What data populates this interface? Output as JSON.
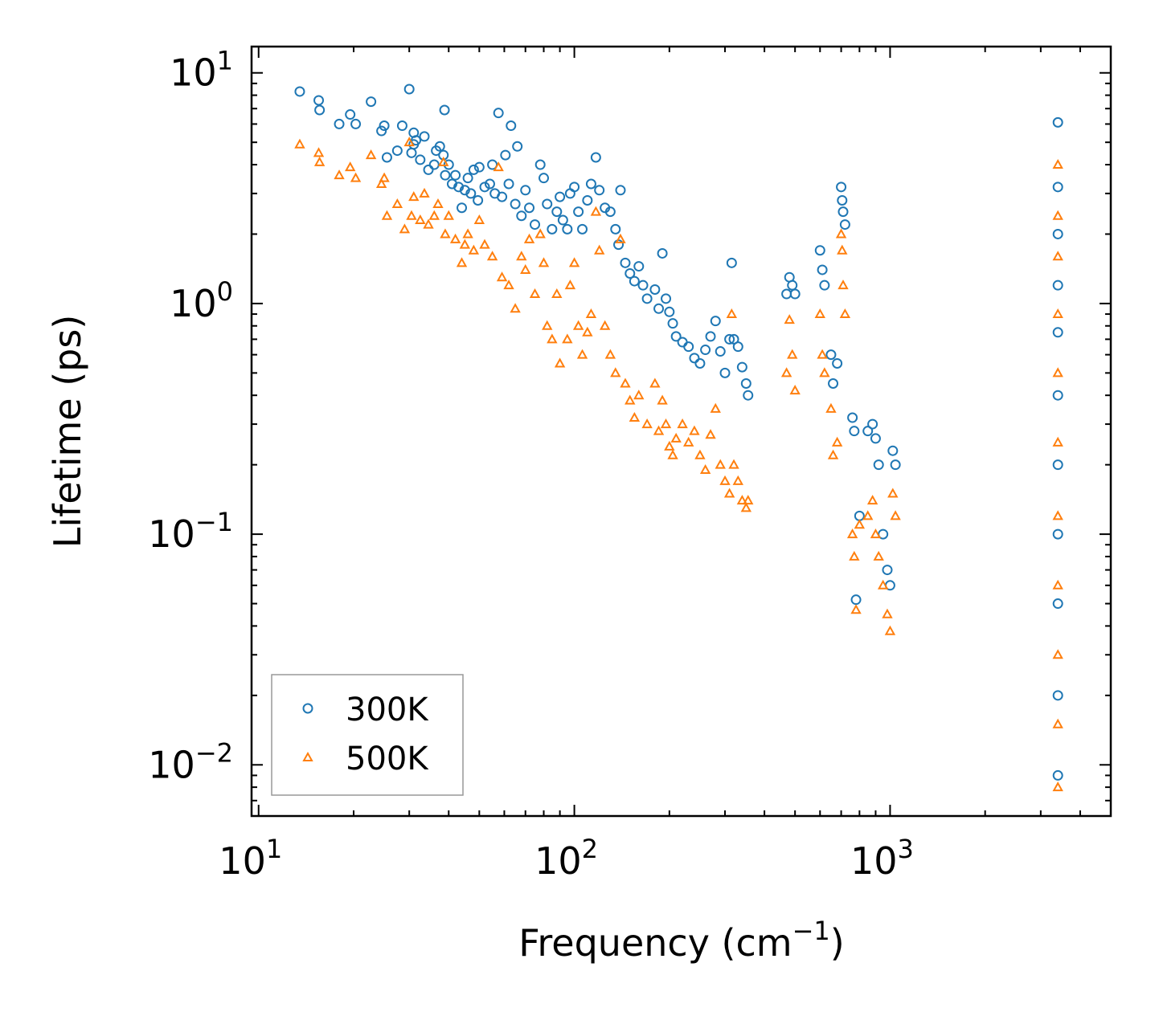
{
  "chart_data": {
    "type": "scatter",
    "xscale": "log",
    "yscale": "log",
    "xlim": [
      9.5,
      5000
    ],
    "ylim": [
      0.006,
      13
    ],
    "xlabel": "Frequency (cm",
    "xlabel_sup": "−1",
    "xlabel_end": ")",
    "ylabel": "Lifetime (ps)",
    "legend_position": "lower-left",
    "x_ticks": [
      {
        "value": 10,
        "base": "10",
        "exp": "1"
      },
      {
        "value": 100,
        "base": "10",
        "exp": "2"
      },
      {
        "value": 1000,
        "base": "10",
        "exp": "3"
      }
    ],
    "y_ticks": [
      {
        "value": 0.01,
        "base": "10",
        "exp": "−2"
      },
      {
        "value": 0.1,
        "base": "10",
        "exp": "−1"
      },
      {
        "value": 1,
        "base": "10",
        "exp": "0"
      },
      {
        "value": 10,
        "base": "10",
        "exp": "1"
      }
    ],
    "series": [
      {
        "name": "300K",
        "marker": "circle",
        "color": "#1f77b4",
        "points": [
          [
            13.5,
            8.3
          ],
          [
            15.5,
            7.6
          ],
          [
            15.6,
            6.9
          ],
          [
            18,
            6.0
          ],
          [
            19.5,
            6.6
          ],
          [
            20.3,
            6.0
          ],
          [
            22.7,
            7.5
          ],
          [
            24.5,
            5.6
          ],
          [
            25,
            5.9
          ],
          [
            25.5,
            4.3
          ],
          [
            27.5,
            4.6
          ],
          [
            28.5,
            5.9
          ],
          [
            30,
            8.5
          ],
          [
            30.5,
            4.5
          ],
          [
            31,
            4.9
          ],
          [
            31,
            5.5
          ],
          [
            31.5,
            5.1
          ],
          [
            32.5,
            4.2
          ],
          [
            33.5,
            5.3
          ],
          [
            34.5,
            3.8
          ],
          [
            36,
            4.0
          ],
          [
            36.5,
            4.6
          ],
          [
            37.5,
            4.8
          ],
          [
            38.5,
            4.4
          ],
          [
            38.8,
            6.9
          ],
          [
            39,
            3.6
          ],
          [
            40,
            4.0
          ],
          [
            41,
            3.3
          ],
          [
            42,
            3.6
          ],
          [
            43,
            3.2
          ],
          [
            44,
            2.6
          ],
          [
            45,
            3.1
          ],
          [
            46,
            3.5
          ],
          [
            47,
            3.0
          ],
          [
            48,
            3.8
          ],
          [
            49.5,
            2.8
          ],
          [
            50,
            3.9
          ],
          [
            52,
            3.2
          ],
          [
            54,
            3.3
          ],
          [
            55,
            4.0
          ],
          [
            56,
            3.0
          ],
          [
            57.5,
            6.7
          ],
          [
            59,
            2.9
          ],
          [
            60.5,
            4.4
          ],
          [
            62,
            3.3
          ],
          [
            63,
            5.9
          ],
          [
            65,
            2.7
          ],
          [
            66,
            4.8
          ],
          [
            68,
            2.4
          ],
          [
            70,
            3.1
          ],
          [
            72,
            2.6
          ],
          [
            75,
            2.2
          ],
          [
            78,
            4.0
          ],
          [
            80,
            3.5
          ],
          [
            82,
            2.7
          ],
          [
            85,
            2.1
          ],
          [
            88,
            2.5
          ],
          [
            90,
            2.9
          ],
          [
            92,
            2.3
          ],
          [
            95,
            2.1
          ],
          [
            97,
            3.0
          ],
          [
            100,
            3.2
          ],
          [
            103,
            2.5
          ],
          [
            106,
            2.1
          ],
          [
            110,
            2.8
          ],
          [
            113,
            3.3
          ],
          [
            117,
            4.3
          ],
          [
            120,
            3.1
          ],
          [
            125,
            2.6
          ],
          [
            130,
            2.5
          ],
          [
            135,
            2.1
          ],
          [
            138,
            1.8
          ],
          [
            140,
            3.1
          ],
          [
            145,
            1.5
          ],
          [
            150,
            1.35
          ],
          [
            155,
            1.25
          ],
          [
            160,
            1.45
          ],
          [
            165,
            1.2
          ],
          [
            170,
            1.05
          ],
          [
            180,
            1.15
          ],
          [
            185,
            0.95
          ],
          [
            190,
            1.65
          ],
          [
            195,
            1.05
          ],
          [
            200,
            0.92
          ],
          [
            205,
            0.82
          ],
          [
            210,
            0.72
          ],
          [
            220,
            0.68
          ],
          [
            230,
            0.65
          ],
          [
            240,
            0.58
          ],
          [
            250,
            0.55
          ],
          [
            260,
            0.63
          ],
          [
            270,
            0.72
          ],
          [
            280,
            0.84
          ],
          [
            290,
            0.62
          ],
          [
            300,
            0.5
          ],
          [
            310,
            0.7
          ],
          [
            315,
            1.5
          ],
          [
            320,
            0.7
          ],
          [
            330,
            0.65
          ],
          [
            340,
            0.53
          ],
          [
            350,
            0.45
          ],
          [
            355,
            0.4
          ],
          [
            470,
            1.1
          ],
          [
            480,
            1.3
          ],
          [
            490,
            1.2
          ],
          [
            500,
            1.1
          ],
          [
            600,
            1.7
          ],
          [
            610,
            1.4
          ],
          [
            620,
            1.2
          ],
          [
            650,
            0.6
          ],
          [
            660,
            0.45
          ],
          [
            680,
            0.55
          ],
          [
            700,
            3.2
          ],
          [
            705,
            2.8
          ],
          [
            710,
            2.5
          ],
          [
            720,
            2.2
          ],
          [
            760,
            0.32
          ],
          [
            770,
            0.28
          ],
          [
            780,
            0.052
          ],
          [
            800,
            0.12
          ],
          [
            850,
            0.28
          ],
          [
            880,
            0.3
          ],
          [
            900,
            0.26
          ],
          [
            920,
            0.2
          ],
          [
            950,
            0.1
          ],
          [
            980,
            0.07
          ],
          [
            1000,
            0.06
          ],
          [
            1020,
            0.23
          ],
          [
            1040,
            0.2
          ],
          [
            3400,
            6.1
          ],
          [
            3400,
            3.2
          ],
          [
            3400,
            2.0
          ],
          [
            3400,
            1.2
          ],
          [
            3400,
            0.75
          ],
          [
            3400,
            0.4
          ],
          [
            3400,
            0.2
          ],
          [
            3400,
            0.1
          ],
          [
            3400,
            0.05
          ],
          [
            3400,
            0.02
          ],
          [
            3400,
            0.009
          ]
        ]
      },
      {
        "name": "500K",
        "marker": "triangle",
        "color": "#ff7f0e",
        "points": [
          [
            13.5,
            4.9
          ],
          [
            15.5,
            4.5
          ],
          [
            15.6,
            4.1
          ],
          [
            18,
            3.6
          ],
          [
            19.5,
            3.9
          ],
          [
            20.3,
            3.5
          ],
          [
            22.7,
            4.4
          ],
          [
            24.5,
            3.3
          ],
          [
            25,
            3.5
          ],
          [
            25.5,
            2.4
          ],
          [
            27.5,
            2.7
          ],
          [
            29,
            2.1
          ],
          [
            30,
            5.0
          ],
          [
            30.5,
            2.4
          ],
          [
            31,
            2.9
          ],
          [
            32.5,
            2.3
          ],
          [
            33.5,
            3.0
          ],
          [
            34.5,
            2.2
          ],
          [
            36,
            2.4
          ],
          [
            37,
            2.7
          ],
          [
            38.5,
            4.1
          ],
          [
            39,
            2.0
          ],
          [
            40,
            2.4
          ],
          [
            42,
            1.9
          ],
          [
            44,
            1.5
          ],
          [
            45,
            1.8
          ],
          [
            46,
            2.0
          ],
          [
            48,
            1.7
          ],
          [
            50,
            2.3
          ],
          [
            52,
            1.8
          ],
          [
            55,
            1.6
          ],
          [
            57.5,
            3.9
          ],
          [
            59,
            1.3
          ],
          [
            62,
            1.2
          ],
          [
            65,
            0.95
          ],
          [
            68,
            1.6
          ],
          [
            70,
            1.4
          ],
          [
            72,
            1.9
          ],
          [
            75,
            1.1
          ],
          [
            78,
            2.0
          ],
          [
            80,
            1.5
          ],
          [
            82,
            0.8
          ],
          [
            85,
            0.7
          ],
          [
            88,
            1.1
          ],
          [
            90,
            0.55
          ],
          [
            95,
            0.7
          ],
          [
            97,
            1.2
          ],
          [
            100,
            1.5
          ],
          [
            103,
            0.8
          ],
          [
            106,
            0.6
          ],
          [
            110,
            0.75
          ],
          [
            113,
            0.9
          ],
          [
            117,
            2.5
          ],
          [
            120,
            1.7
          ],
          [
            125,
            0.8
          ],
          [
            130,
            0.6
          ],
          [
            135,
            0.5
          ],
          [
            140,
            1.9
          ],
          [
            145,
            0.45
          ],
          [
            150,
            0.38
          ],
          [
            155,
            0.32
          ],
          [
            160,
            0.4
          ],
          [
            170,
            0.3
          ],
          [
            180,
            0.45
          ],
          [
            185,
            0.28
          ],
          [
            190,
            0.38
          ],
          [
            195,
            0.3
          ],
          [
            200,
            0.24
          ],
          [
            205,
            0.22
          ],
          [
            210,
            0.26
          ],
          [
            220,
            0.3
          ],
          [
            230,
            0.25
          ],
          [
            240,
            0.28
          ],
          [
            250,
            0.22
          ],
          [
            260,
            0.19
          ],
          [
            270,
            0.27
          ],
          [
            280,
            0.35
          ],
          [
            290,
            0.2
          ],
          [
            300,
            0.17
          ],
          [
            310,
            0.15
          ],
          [
            315,
            0.9
          ],
          [
            320,
            0.2
          ],
          [
            330,
            0.17
          ],
          [
            340,
            0.14
          ],
          [
            350,
            0.13
          ],
          [
            355,
            0.14
          ],
          [
            470,
            0.5
          ],
          [
            480,
            0.85
          ],
          [
            490,
            0.6
          ],
          [
            500,
            0.42
          ],
          [
            600,
            0.9
          ],
          [
            610,
            0.6
          ],
          [
            620,
            0.5
          ],
          [
            650,
            0.35
          ],
          [
            660,
            0.22
          ],
          [
            680,
            0.25
          ],
          [
            700,
            2.0
          ],
          [
            705,
            1.7
          ],
          [
            710,
            1.2
          ],
          [
            720,
            0.9
          ],
          [
            760,
            0.1
          ],
          [
            770,
            0.08
          ],
          [
            780,
            0.047
          ],
          [
            800,
            0.11
          ],
          [
            850,
            0.12
          ],
          [
            880,
            0.14
          ],
          [
            900,
            0.1
          ],
          [
            920,
            0.08
          ],
          [
            950,
            0.06
          ],
          [
            980,
            0.045
          ],
          [
            1000,
            0.038
          ],
          [
            1020,
            0.15
          ],
          [
            1040,
            0.12
          ],
          [
            3400,
            4.0
          ],
          [
            3400,
            2.4
          ],
          [
            3400,
            1.6
          ],
          [
            3400,
            0.9
          ],
          [
            3400,
            0.5
          ],
          [
            3400,
            0.25
          ],
          [
            3400,
            0.12
          ],
          [
            3400,
            0.06
          ],
          [
            3400,
            0.03
          ],
          [
            3400,
            0.015
          ],
          [
            3400,
            0.008
          ]
        ]
      }
    ]
  }
}
